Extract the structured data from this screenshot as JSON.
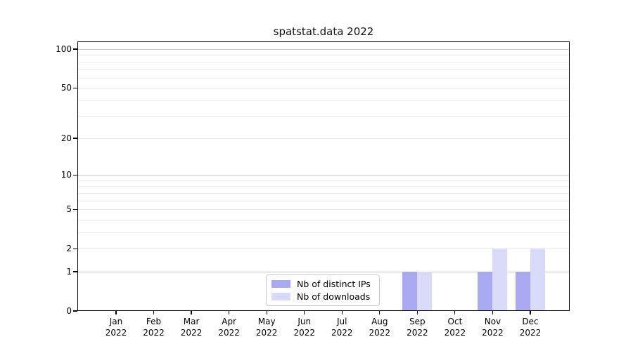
{
  "title": "spatstat.data 2022",
  "colors": {
    "distinct_ips": "#a9a9f2",
    "downloads": "#d9d9f8",
    "grid_major": "#c6c6c6",
    "grid_minor": "#ebebeb",
    "axis": "#000000",
    "legend_border": "#c9c9c9"
  },
  "chart_data": {
    "type": "bar",
    "title": "spatstat.data 2022",
    "months": [
      "Jan",
      "Feb",
      "Mar",
      "Apr",
      "May",
      "Jun",
      "Jul",
      "Aug",
      "Sep",
      "Oct",
      "Nov",
      "Dec"
    ],
    "year": "2022",
    "series": [
      {
        "name": "Nb of distinct IPs",
        "color_key": "distinct_ips",
        "values": [
          0,
          0,
          0,
          0,
          0,
          0,
          0,
          0,
          1,
          0,
          1,
          1
        ]
      },
      {
        "name": "Nb of downloads",
        "color_key": "downloads",
        "values": [
          0,
          0,
          0,
          0,
          0,
          0,
          0,
          0,
          1,
          0,
          2,
          2
        ]
      }
    ],
    "yscale": "log1p",
    "ylim": [
      0,
      115
    ],
    "y_ticks": [
      0,
      1,
      2,
      5,
      10,
      20,
      50,
      100
    ],
    "y_major_gridlines": [
      1,
      10,
      100
    ],
    "y_minor_gridlines": [
      2,
      3,
      4,
      5,
      6,
      7,
      8,
      9,
      20,
      30,
      40,
      50,
      60,
      70,
      80,
      90
    ],
    "grid": true,
    "legend_position": "lower center"
  }
}
